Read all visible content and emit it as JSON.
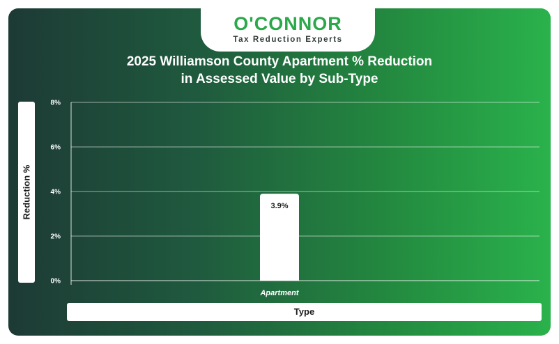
{
  "brand": {
    "name": "O'CONNOR",
    "tagline": "Tax Reduction Experts",
    "accent_color": "#2aa84a"
  },
  "colors": {
    "background_start": "#1d3a35",
    "background_end": "#2ab24c",
    "bar": "#ffffff",
    "grid": "#ffffff"
  },
  "chart_data": {
    "type": "bar",
    "title_line1": "2025 Williamson County Apartment % Reduction",
    "title_line2": "in Assessed Value by Sub-Type",
    "xlabel": "Type",
    "ylabel": "Reduction %",
    "categories": [
      "Apartment"
    ],
    "values": [
      3.9
    ],
    "data_labels": [
      "3.9%"
    ],
    "ylim": [
      0,
      8
    ],
    "yticks": [
      0,
      2,
      4,
      6,
      8
    ],
    "ytick_labels": [
      "0%",
      "2%",
      "4%",
      "6%",
      "8%"
    ],
    "grid": true,
    "legend": "none"
  }
}
